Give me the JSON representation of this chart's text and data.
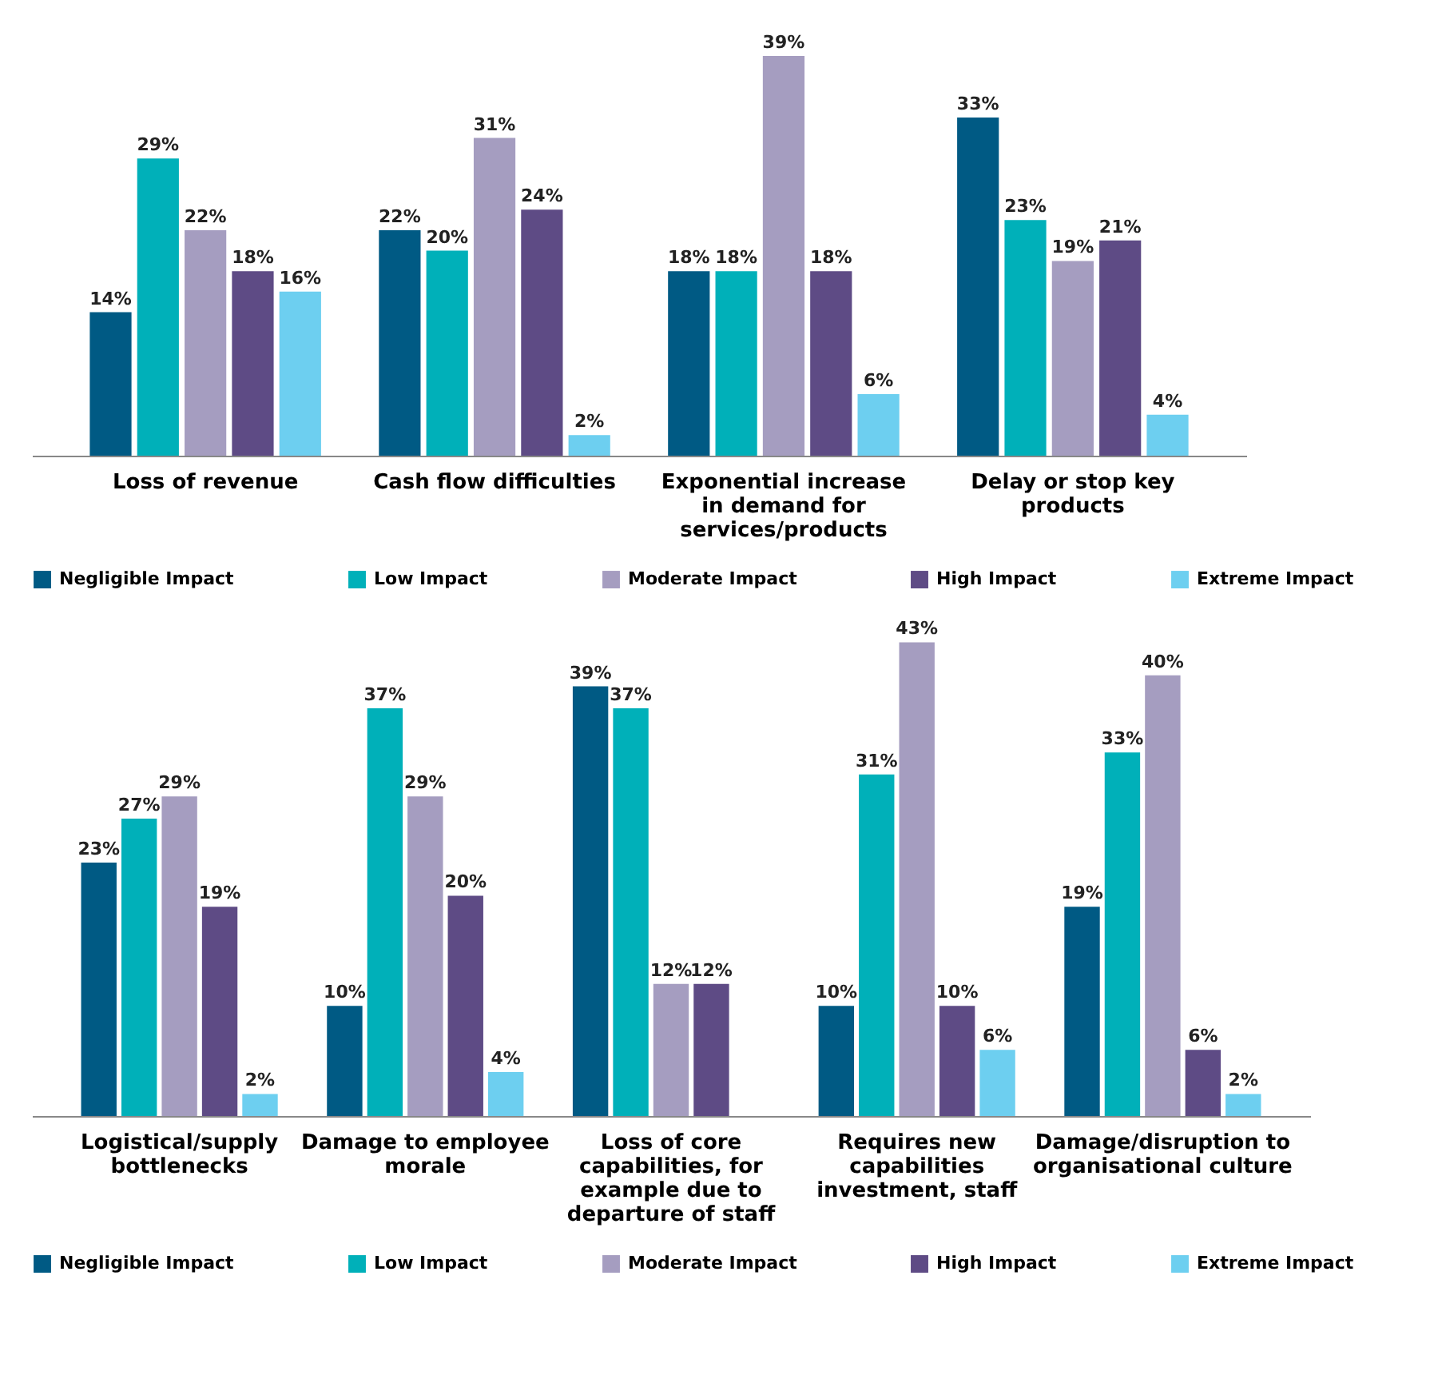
{
  "chart_data": [
    {
      "type": "bar",
      "legend": "bottom",
      "categories": [
        "Loss of revenue",
        "Cash flow difficulties",
        "Exponential increase in demand for services/products",
        "Delay or stop key products"
      ],
      "series": [
        {
          "name": "Negligible Impact",
          "color": "#005a84",
          "values": [
            14,
            22,
            18,
            33
          ],
          "value_labels": [
            "14%",
            "22%",
            "18%",
            "33%"
          ]
        },
        {
          "name": "Low Impact",
          "color": "#00b0b9",
          "values": [
            29,
            20,
            18,
            23
          ],
          "value_labels": [
            "29%",
            "20%",
            "18%",
            "23%"
          ]
        },
        {
          "name": "Moderate Impact",
          "color": "#a59dc0",
          "values": [
            22,
            31,
            39,
            19
          ],
          "value_labels": [
            "22%",
            "31%",
            "39%",
            "19%"
          ]
        },
        {
          "name": "High Impact",
          "color": "#5e4b85",
          "values": [
            18,
            24,
            18,
            21
          ],
          "value_labels": [
            "18%",
            "24%",
            "18%",
            "21%"
          ]
        },
        {
          "name": "Extreme Impact",
          "color": "#6dcff0",
          "values": [
            16,
            2,
            6,
            4
          ],
          "value_labels": [
            "16%",
            "2%",
            "6%",
            "4%"
          ]
        }
      ]
    },
    {
      "type": "bar",
      "legend": "bottom",
      "categories": [
        "Logistical/supply bottlenecks",
        "Damage to employee morale",
        "Loss of core capabilities, for example due to departure of staff",
        "Requires new capabilities investment, staff",
        "Damage/disruption to organisational culture"
      ],
      "series": [
        {
          "name": "Negligible Impact",
          "color": "#005a84",
          "values": [
            23,
            10,
            39,
            10,
            19
          ],
          "value_labels": [
            "23%",
            "10%",
            "39%",
            "10%",
            "19%"
          ]
        },
        {
          "name": "Low Impact",
          "color": "#00b0b9",
          "values": [
            27,
            37,
            37,
            31,
            33
          ],
          "value_labels": [
            "27%",
            "37%",
            "37%",
            "31%",
            "33%"
          ]
        },
        {
          "name": "Moderate Impact",
          "color": "#a59dc0",
          "values": [
            29,
            29,
            12,
            43,
            40
          ],
          "value_labels": [
            "29%",
            "29%",
            "12%",
            "43%",
            "40%"
          ]
        },
        {
          "name": "High Impact",
          "color": "#5e4b85",
          "values": [
            19,
            20,
            12,
            10,
            6
          ],
          "value_labels": [
            "19%",
            "20%",
            "12%",
            "10%",
            "6%"
          ]
        },
        {
          "name": "Extreme Impact",
          "color": "#6dcff0",
          "values": [
            2,
            4,
            0,
            6,
            2
          ],
          "value_labels": [
            "2%",
            "4%",
            null,
            "6%",
            "2%"
          ]
        }
      ]
    }
  ]
}
